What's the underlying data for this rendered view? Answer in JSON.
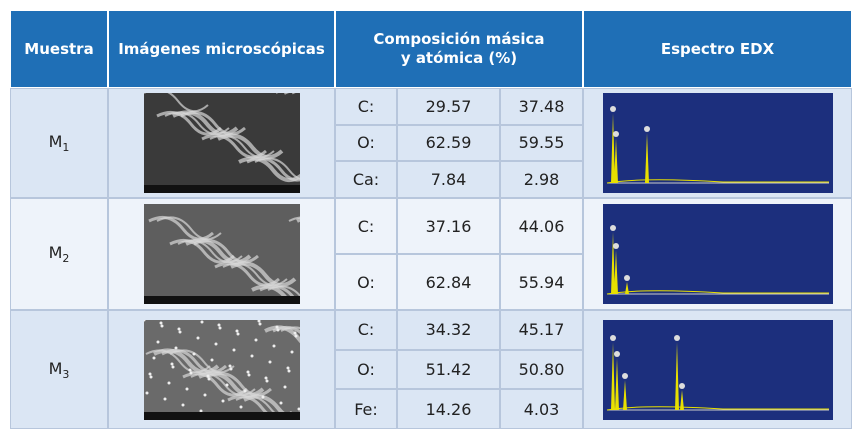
{
  "table": {
    "header": {
      "sample": "Muestra",
      "images": "Imágenes microscópicas",
      "composition": [
        "Composición másica",
        "y atómica (%)"
      ],
      "edx": "Espectro EDX"
    },
    "rows": [
      {
        "sample": {
          "name": "M",
          "sub": "1"
        },
        "elements": [
          {
            "label": "C:",
            "mass": "29.57",
            "atomic": "37.48"
          },
          {
            "label": "O:",
            "mass": "62.59",
            "atomic": "59.55"
          },
          {
            "label": "Ca:",
            "mass": "7.84",
            "atomic": "2.98"
          }
        ]
      },
      {
        "sample": {
          "name": "M",
          "sub": "2"
        },
        "elements": [
          {
            "label": "C:",
            "mass": "37.16",
            "atomic": "44.06"
          },
          {
            "label": "O:",
            "mass": "62.84",
            "atomic": "55.94"
          }
        ]
      },
      {
        "sample": {
          "name": "M",
          "sub": "3"
        },
        "elements": [
          {
            "label": "C:",
            "mass": "34.32",
            "atomic": "45.17"
          },
          {
            "label": "O:",
            "mass": "51.42",
            "atomic": "50.80"
          },
          {
            "label": "Fe:",
            "mass": "14.26",
            "atomic": "4.03"
          }
        ]
      }
    ]
  }
}
